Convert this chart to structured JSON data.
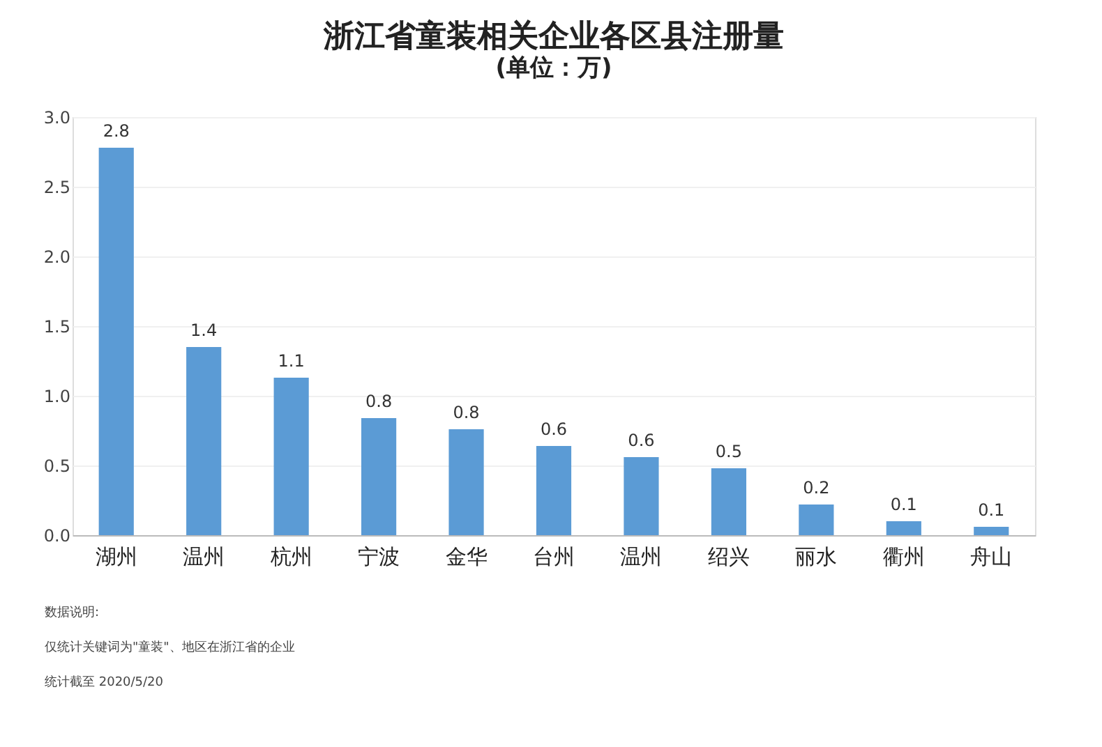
{
  "chart_data": {
    "type": "bar",
    "title": "浙江省童装相关企业各区县注册量",
    "subtitle": "(单位：万)",
    "categories": [
      "湖州",
      "温州",
      "杭州",
      "宁波",
      "金华",
      "台州",
      "温州",
      "绍兴",
      "丽水",
      "衢州",
      "舟山"
    ],
    "values": [
      2.78,
      1.35,
      1.13,
      0.84,
      0.76,
      0.64,
      0.56,
      0.48,
      0.22,
      0.1,
      0.06
    ],
    "value_labels": [
      "2.8",
      "1.4",
      "1.1",
      "0.8",
      "0.8",
      "0.6",
      "0.6",
      "0.5",
      "0.2",
      "0.1",
      "0.1"
    ],
    "color": "#5b9bd5",
    "ylim": [
      0,
      3.0
    ],
    "yticks": [
      {
        "value": 0,
        "label": "0.0"
      },
      {
        "value": 0.5,
        "label": "0.5"
      },
      {
        "value": 1.0,
        "label": "1.0"
      },
      {
        "value": 1.5,
        "label": "1.5"
      },
      {
        "value": 2.0,
        "label": "2.0"
      },
      {
        "value": 2.5,
        "label": "2.5"
      },
      {
        "value": 3.0,
        "label": "3.0"
      }
    ],
    "grid": "y",
    "annotations": [
      "数据说明:",
      "仅统计关键词为\"童装\"、地区在浙江省的企业",
      "统计截至 2020/5/20"
    ]
  }
}
